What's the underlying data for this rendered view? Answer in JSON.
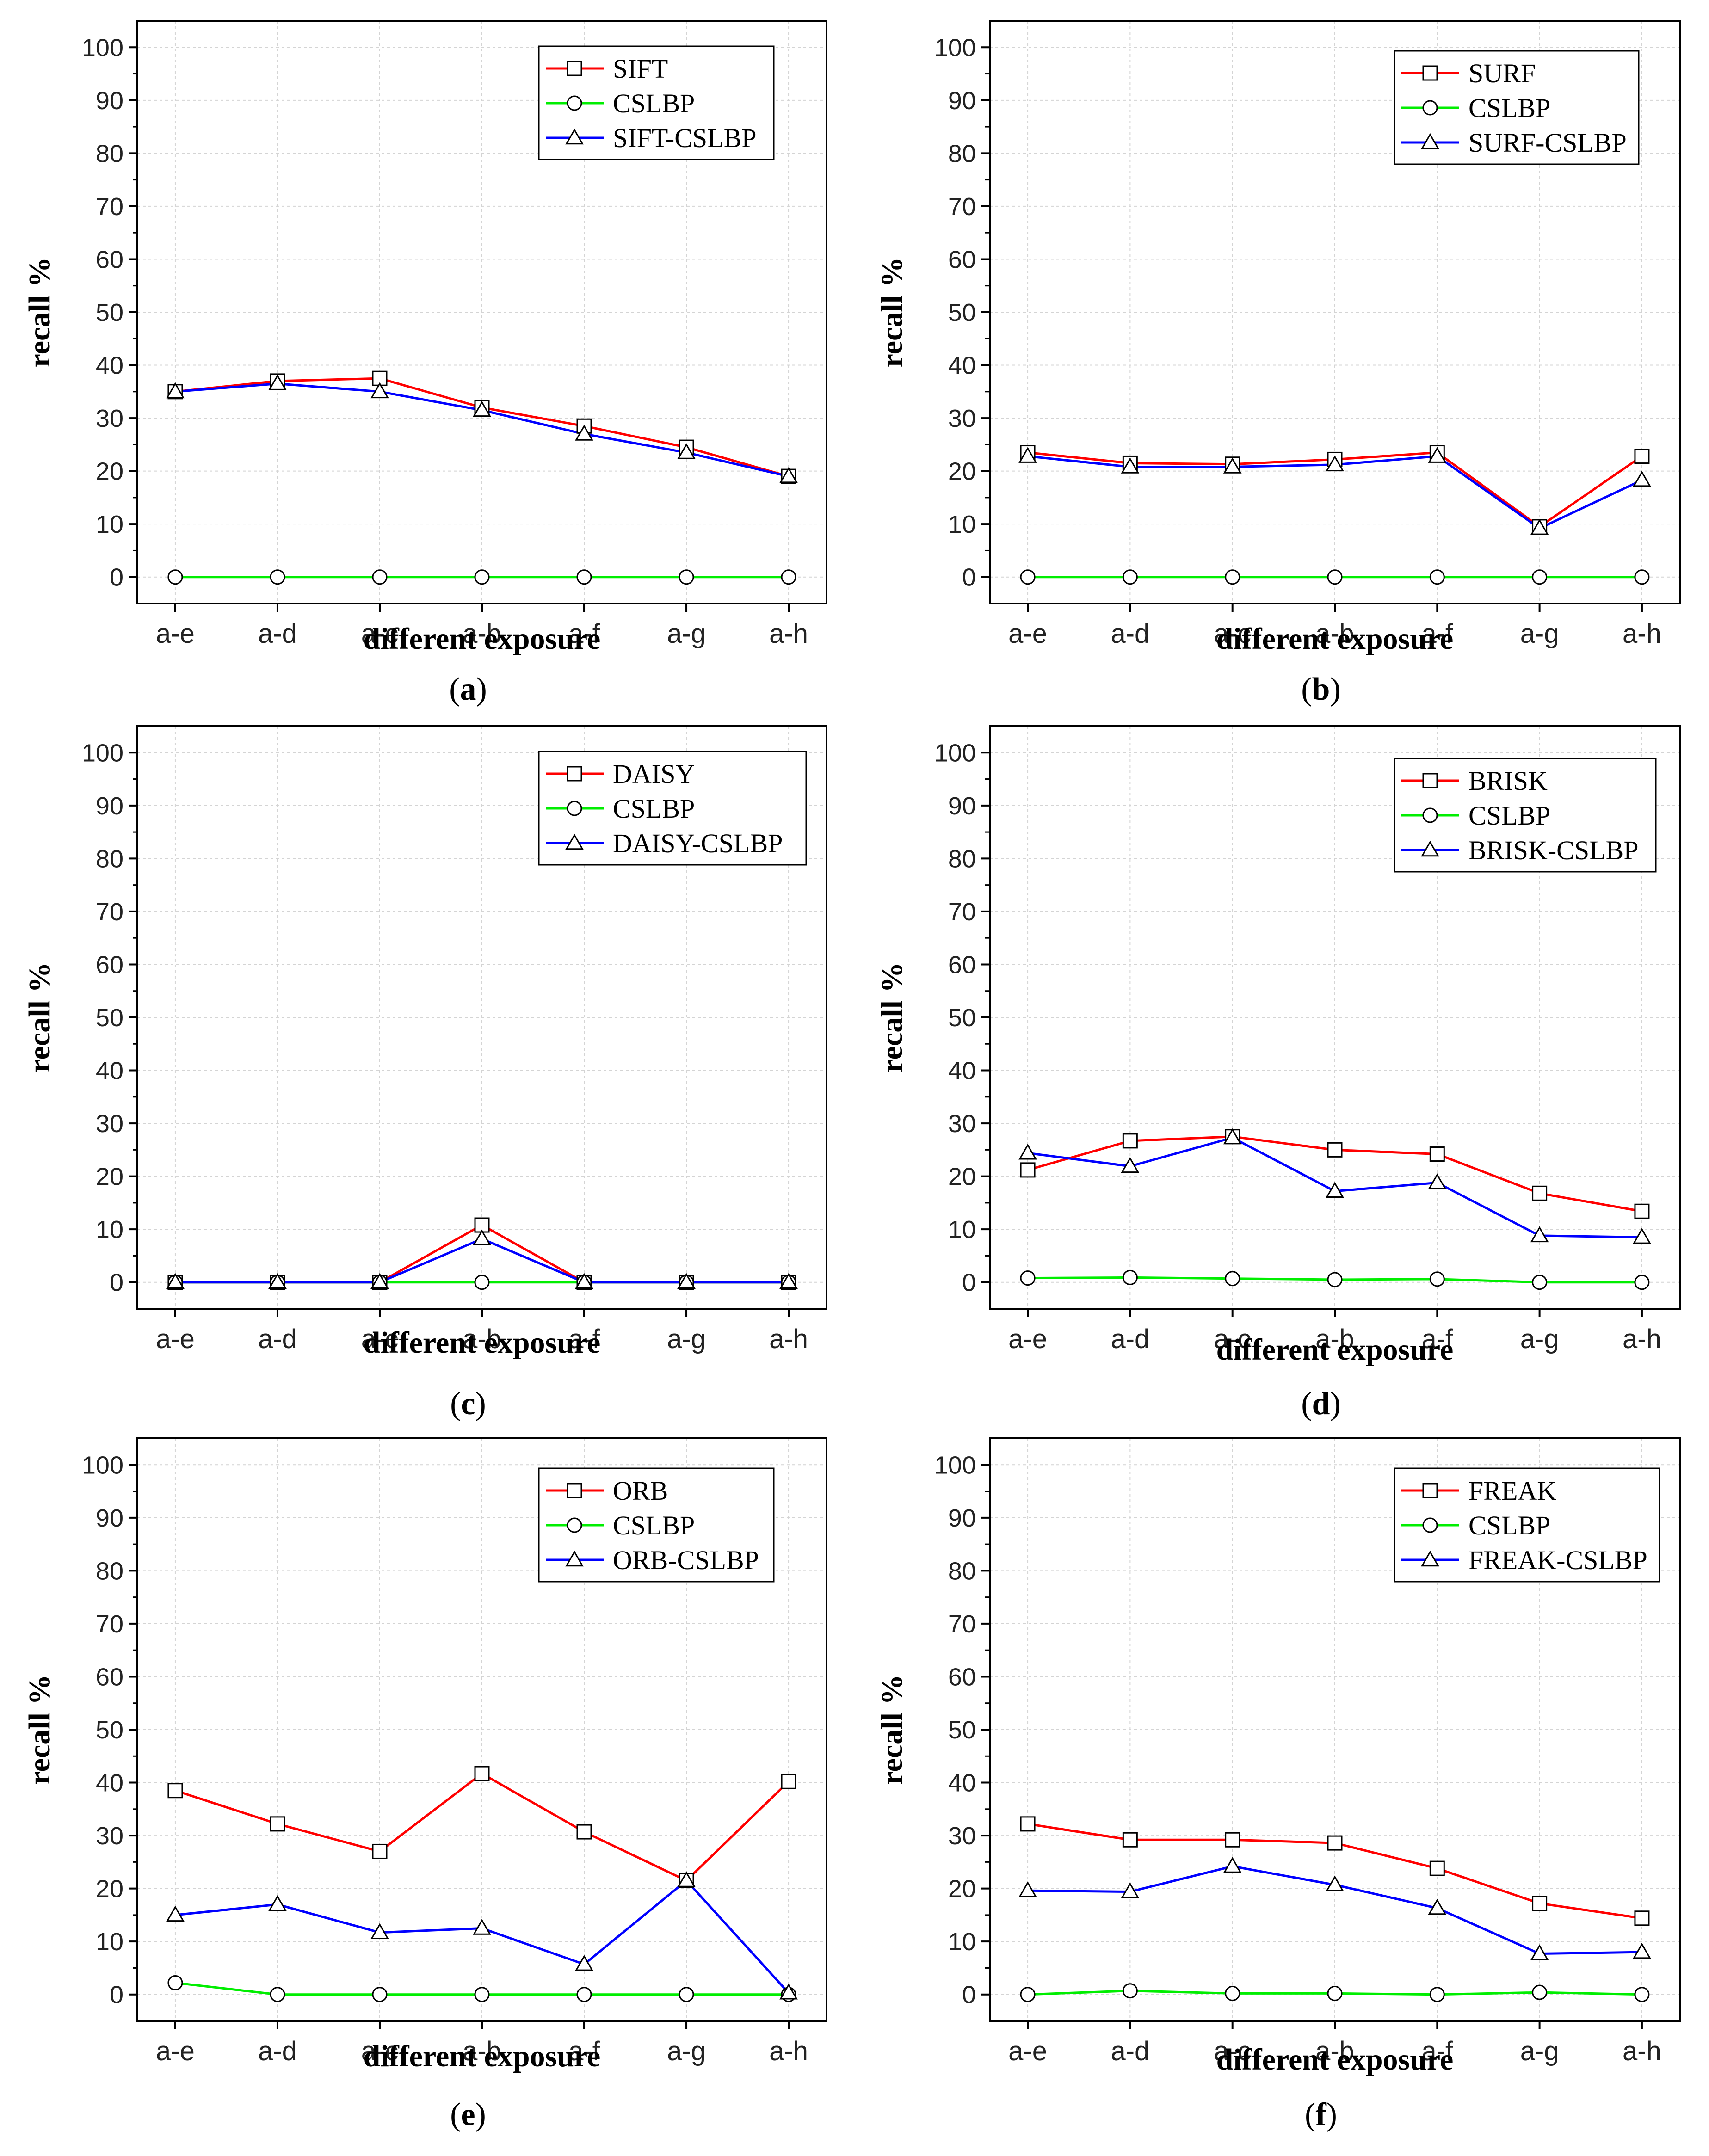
{
  "chart_data": [
    {
      "type": "line",
      "panel_label": "(a)",
      "panel_letter": "a",
      "xlabel": "different exposure",
      "ylabel": "recall %",
      "categories": [
        "a-e",
        "a-d",
        "a-c",
        "a-b",
        "a-f",
        "a-g",
        "a-h"
      ],
      "ylim": [
        -5,
        105
      ],
      "yticks": [
        0,
        10,
        20,
        30,
        40,
        50,
        60,
        70,
        80,
        90,
        100
      ],
      "grid": true,
      "legend_position": "top-right",
      "series": [
        {
          "name": "SIFT",
          "color": "#ff0000",
          "marker": "square",
          "values": [
            35,
            37,
            37.5,
            32,
            28.5,
            24.5,
            19
          ]
        },
        {
          "name": "CSLBP",
          "color": "#00ee00",
          "marker": "circle",
          "values": [
            0,
            0,
            0,
            0,
            0,
            0,
            0
          ]
        },
        {
          "name": "SIFT-CSLBP",
          "color": "#0000ff",
          "marker": "triangle",
          "values": [
            35,
            36.5,
            35,
            31.5,
            27,
            23.5,
            19
          ]
        }
      ]
    },
    {
      "type": "line",
      "panel_label": "(b)",
      "panel_letter": "b",
      "xlabel": "different exposure",
      "ylabel": "recall %",
      "categories": [
        "a-e",
        "a-d",
        "a-c",
        "a-b",
        "a-f",
        "a-g",
        "a-h"
      ],
      "ylim": [
        -5,
        105
      ],
      "yticks": [
        0,
        10,
        20,
        30,
        40,
        50,
        60,
        70,
        80,
        90,
        100
      ],
      "grid": true,
      "legend_position": "top-right",
      "series": [
        {
          "name": "SURF",
          "color": "#ff0000",
          "marker": "square",
          "values": [
            23.5,
            21.5,
            21.3,
            22.2,
            23.5,
            9.5,
            22.8
          ]
        },
        {
          "name": "CSLBP",
          "color": "#00ee00",
          "marker": "circle",
          "values": [
            0,
            0,
            0,
            0,
            0,
            0,
            0
          ]
        },
        {
          "name": "SURF-CSLBP",
          "color": "#0000ff",
          "marker": "triangle",
          "values": [
            22.8,
            20.8,
            20.8,
            21.2,
            22.8,
            9.2,
            18.3
          ]
        }
      ]
    },
    {
      "type": "line",
      "panel_label": "(c)",
      "panel_letter": "c",
      "xlabel": "different exposure",
      "ylabel": "recall %",
      "categories": [
        "a-e",
        "a-d",
        "a-c",
        "a-b",
        "a-f",
        "a-g",
        "a-h"
      ],
      "ylim": [
        -5,
        105
      ],
      "yticks": [
        0,
        10,
        20,
        30,
        40,
        50,
        60,
        70,
        80,
        90,
        100
      ],
      "grid": true,
      "legend_position": "top-right",
      "series": [
        {
          "name": "DAISY",
          "color": "#ff0000",
          "marker": "square",
          "values": [
            0,
            0,
            0,
            10.8,
            0,
            0,
            0
          ]
        },
        {
          "name": "CSLBP",
          "color": "#00ee00",
          "marker": "circle",
          "values": [
            0,
            0,
            0,
            0,
            0,
            0,
            0
          ]
        },
        {
          "name": "DAISY-CSLBP",
          "color": "#0000ff",
          "marker": "triangle",
          "values": [
            0,
            0,
            0,
            8.2,
            0,
            0,
            0
          ]
        }
      ]
    },
    {
      "type": "line",
      "panel_label": "(d)",
      "panel_letter": "d",
      "xlabel": "different exposure",
      "ylabel": "recall %",
      "categories": [
        "a-e",
        "a-d",
        "a-c",
        "a-b",
        "a-f",
        "a-g",
        "a-h"
      ],
      "ylim": [
        -5,
        105
      ],
      "yticks": [
        0,
        10,
        20,
        30,
        40,
        50,
        60,
        70,
        80,
        90,
        100
      ],
      "grid": true,
      "legend_position": "top-right",
      "series": [
        {
          "name": "BRISK",
          "color": "#ff0000",
          "marker": "square",
          "values": [
            21.2,
            26.7,
            27.5,
            25,
            24.2,
            16.8,
            13.4
          ]
        },
        {
          "name": "CSLBP",
          "color": "#00ee00",
          "marker": "circle",
          "values": [
            0.8,
            0.9,
            0.7,
            0.5,
            0.6,
            0,
            0
          ]
        },
        {
          "name": "BRISK-CSLBP",
          "color": "#0000ff",
          "marker": "triangle",
          "values": [
            24.4,
            21.9,
            27.3,
            17.2,
            18.8,
            8.8,
            8.5
          ]
        }
      ]
    },
    {
      "type": "line",
      "panel_label": "(e)",
      "panel_letter": "e",
      "xlabel": "different exposure",
      "ylabel": "recall %",
      "categories": [
        "a-e",
        "a-d",
        "a-c",
        "a-b",
        "a-f",
        "a-g",
        "a-h"
      ],
      "ylim": [
        -5,
        105
      ],
      "yticks": [
        0,
        10,
        20,
        30,
        40,
        50,
        60,
        70,
        80,
        90,
        100
      ],
      "grid": true,
      "legend_position": "top-right",
      "series": [
        {
          "name": "ORB",
          "color": "#ff0000",
          "marker": "square",
          "values": [
            38.5,
            32.2,
            27,
            41.7,
            30.7,
            21.5,
            40.2
          ]
        },
        {
          "name": "CSLBP",
          "color": "#00ee00",
          "marker": "circle",
          "values": [
            2.2,
            0,
            0,
            0,
            0,
            0,
            0
          ]
        },
        {
          "name": "ORB-CSLBP",
          "color": "#0000ff",
          "marker": "triangle",
          "values": [
            15,
            17,
            11.7,
            12.5,
            5.7,
            21.5,
            0.3
          ]
        }
      ]
    },
    {
      "type": "line",
      "panel_label": "(f)",
      "panel_letter": "f",
      "xlabel": "different exposure",
      "ylabel": "recall %",
      "categories": [
        "a-e",
        "a-d",
        "a-c",
        "a-b",
        "a-f",
        "a-g",
        "a-h"
      ],
      "ylim": [
        -5,
        105
      ],
      "yticks": [
        0,
        10,
        20,
        30,
        40,
        50,
        60,
        70,
        80,
        90,
        100
      ],
      "grid": true,
      "legend_position": "top-right",
      "series": [
        {
          "name": "FREAK",
          "color": "#ff0000",
          "marker": "square",
          "values": [
            32.2,
            29.2,
            29.2,
            28.6,
            23.8,
            17.2,
            14.4
          ]
        },
        {
          "name": "CSLBP",
          "color": "#00ee00",
          "marker": "circle",
          "values": [
            0,
            0.7,
            0.2,
            0.2,
            0,
            0.4,
            0
          ]
        },
        {
          "name": "FREAK-CSLBP",
          "color": "#0000ff",
          "marker": "triangle",
          "values": [
            19.6,
            19.4,
            24.2,
            20.7,
            16.3,
            7.7,
            8
          ]
        }
      ]
    }
  ]
}
